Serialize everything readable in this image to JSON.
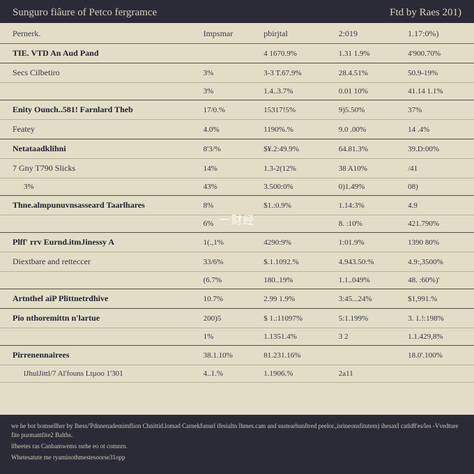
{
  "colors": {
    "page_bg": "#2b2b38",
    "sheet_bg": "#e3ddc8",
    "rule": "#b8b19a",
    "rule_strong": "#55513f",
    "text": "#2a2a33",
    "header_text": "#d9d2bc"
  },
  "header": {
    "left": "Sunguro fiâure of Petco fergramce",
    "right": "Ftd by Raes 201)"
  },
  "table": {
    "columns": [
      "Pernerk.",
      "Impsmar",
      "pbirjtal",
      "2:019",
      "1.17:0%)"
    ],
    "column_widths": [
      "42%",
      "13%",
      "15%",
      "15%",
      "15%"
    ],
    "rows": [
      {
        "cls": "section strong-line",
        "cells": [
          "TIE. VTD An Aud Pand",
          "",
          "4 1670.9%",
          "1.31 1.9%",
          "4'900.70%"
        ]
      },
      {
        "cls": "",
        "cells": [
          "Secs Cilbetiro",
          "3%",
          "3-3 T.67.9%",
          "28.4.51%",
          "50.9-19%"
        ]
      },
      {
        "cls": "indent strong-line",
        "cells": [
          "",
          "3%",
          "1.4..3.7%",
          "0.01 10%",
          "41.14 1.1%"
        ]
      },
      {
        "cls": "section",
        "cells": [
          "Enity Ounch..581! Farnlard Theb",
          "17/0.%",
          "15317!5%",
          "9)5.50%",
          "37%"
        ]
      },
      {
        "cls": "strong-line",
        "cells": [
          "Featey",
          "4.0%",
          "1190%.%",
          "9.0 .00%",
          "14 .4%"
        ]
      },
      {
        "cls": "section",
        "cells": [
          "Netataadklihni",
          "8'3/%",
          "$¥.2:49.9%",
          "64.81.3%",
          "39.D:00%"
        ]
      },
      {
        "cls": "",
        "cells": [
          "7 Gny T790 Slicks",
          "14%",
          "1.3-2(12%",
          "38 A10%",
          "/41"
        ]
      },
      {
        "cls": "indent strong-line",
        "cells": [
          "3%",
          "43%",
          "3.500:0%",
          "0)1.49%",
          "08)"
        ]
      },
      {
        "cls": "section",
        "cells": [
          "Thne.almpunuvnsasseard Taarlhares",
          "8%",
          "$1.:0.9%",
          "1.14:3%",
          "4.9"
        ]
      },
      {
        "cls": "strong-line",
        "cells": [
          "",
          "6%",
          " ",
          "8. :10%",
          "421.790%"
        ]
      },
      {
        "cls": "section",
        "cells": [
          "Plff' rrv Eurnd.itmJinessy A",
          "1(.,1%",
          "4290:9%",
          "1:01.9%",
          "1390 80%"
        ]
      },
      {
        "cls": "",
        "cells": [
          "Diextbare and retteccer",
          "33/6%",
          "$.1.1092.%",
          "4.943.50:%",
          "4.9:,3500%"
        ]
      },
      {
        "cls": "strong-line",
        "cells": [
          "",
          "(6.7%",
          "180..19%",
          "1.1..049%",
          "48. :60%)'"
        ]
      },
      {
        "cls": "section strong-line",
        "cells": [
          "Artnthel aiP Plittnetrdhive",
          "10.7%",
          "2.99 1.9%",
          "3:45...24%",
          "$1,991.%"
        ]
      },
      {
        "cls": "section",
        "cells": [
          "Pio nthoremittn n'lartue",
          "200)5",
          "$ 1.:11097%",
          "5:1.199%",
          "3. 1.!:198%"
        ]
      },
      {
        "cls": "strong-line",
        "cells": [
          "",
          "1%",
          "1.1351.4%",
          "3  2",
          "1.1.429,8%"
        ]
      },
      {
        "cls": "section",
        "cells": [
          "Pirrenennairees",
          "38.1.10%",
          "81.231.16%",
          "",
          "18.0'.100%"
        ]
      },
      {
        "cls": "indent",
        "cells": [
          "lJhulJittl/7 Al'founs Ltµoo 1'301",
          "4..1.%",
          "1.1906.%",
          "2a11",
          ""
        ]
      }
    ]
  },
  "watermark": "一财经",
  "footer": {
    "line1": "we he bot bomsellher by Ihess/'Pdnnenademimflion Chnittid.lomad Carnekfunurl ifesialtn lhmes.cam and sustearhunItred peelor.,isrineonsfitutem) ihesaxI catld8'es/les -Vvedture fite purmantfite2 Balths.",
    "line2": "lfheetes ras Canbamwems ssrhe eo ot comnrn.",
    "line3": "Whetesatute me ryaminothmestesoorse31opp"
  }
}
